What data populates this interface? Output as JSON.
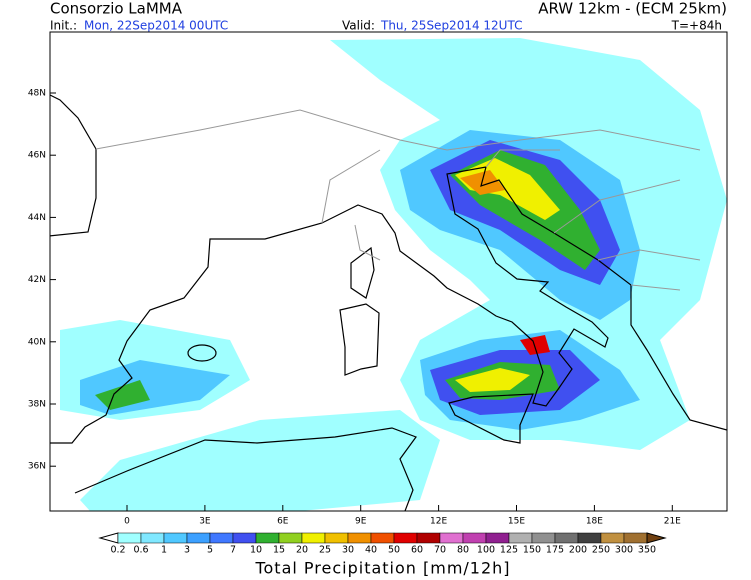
{
  "header": {
    "title": "Consorzio LaMMA",
    "model": "ARW 12km  -  (ECM 25km)",
    "init_label": "Init.:",
    "init": "Mon, 22Sep2014 00UTC",
    "valid_label": "Valid:",
    "valid": "Thu, 25Sep2014 12UTC",
    "lead": "T=+84h"
  },
  "map": {
    "lat_labels": [
      "48N",
      "46N",
      "44N",
      "42N",
      "40N",
      "38N",
      "36N"
    ],
    "lon_labels": [
      "0",
      "3E",
      "6E",
      "9E",
      "12E",
      "15E",
      "18E",
      "21E"
    ]
  },
  "colorbar": {
    "title": "Total Precipitation [mm/12h]",
    "levels": [
      "0.2",
      "0.6",
      "1",
      "3",
      "5",
      "7",
      "10",
      "15",
      "20",
      "25",
      "30",
      "40",
      "50",
      "60",
      "70",
      "80",
      "100",
      "125",
      "150",
      "175",
      "200",
      "250",
      "300",
      "350"
    ],
    "colors": [
      "#ffffff",
      "#a0ffff",
      "#80e8ff",
      "#50c8ff",
      "#3ca0ff",
      "#4078ff",
      "#4050f0",
      "#30b030",
      "#90d020",
      "#f0f000",
      "#f0c000",
      "#f09000",
      "#f05000",
      "#e00000",
      "#b00000",
      "#e070d0",
      "#c040b0",
      "#902090",
      "#b0b0b0",
      "#909090",
      "#707070",
      "#404040",
      "#c09040",
      "#a07030",
      "#704010"
    ]
  }
}
